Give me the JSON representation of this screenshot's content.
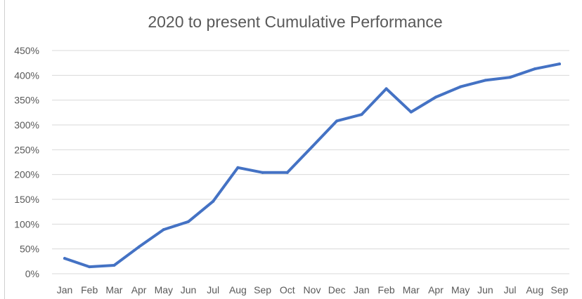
{
  "chart_data": {
    "type": "line",
    "title": "2020 to present Cumulative Performance",
    "xlabel": "",
    "ylabel": "",
    "categories": [
      "Jan",
      "Feb",
      "Mar",
      "Apr",
      "May",
      "Jun",
      "Jul",
      "Aug",
      "Sep",
      "Oct",
      "Nov",
      "Dec",
      "Jan",
      "Feb",
      "Mar",
      "Apr",
      "May",
      "Jun",
      "Jul",
      "Aug",
      "Sep"
    ],
    "series": [
      {
        "name": "Cumulative Performance",
        "color": "#4472c4",
        "values": [
          31,
          14,
          17,
          54,
          89,
          105,
          146,
          214,
          204,
          204,
          256,
          308,
          321,
          373,
          326,
          356,
          377,
          390,
          396,
          413,
          423
        ]
      }
    ],
    "ylim": [
      0,
      450
    ],
    "yticks": [
      0,
      50,
      100,
      150,
      200,
      250,
      300,
      350,
      400,
      450
    ],
    "ytick_labels": [
      "0%",
      "50%",
      "100%",
      "150%",
      "200%",
      "250%",
      "300%",
      "350%",
      "400%",
      "450%"
    ],
    "grid": true,
    "legend": "none"
  }
}
